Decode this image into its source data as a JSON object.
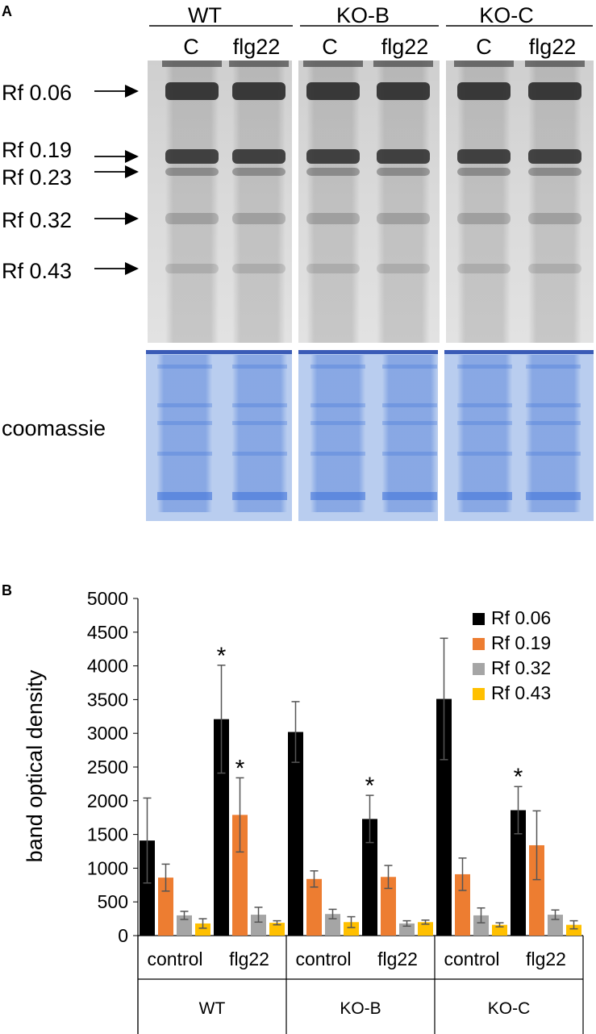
{
  "panelA": {
    "letter": "A",
    "genotypes": [
      "WT",
      "KO-B",
      "KO-C"
    ],
    "lane_labels": [
      "C",
      "flg22",
      "C",
      "flg22",
      "C",
      "flg22"
    ],
    "band_labels": [
      "Rf 0.06",
      "Rf 0.19",
      "Rf 0.23",
      "Rf 0.32",
      "Rf 0.43"
    ],
    "band_rf": [
      0.06,
      0.19,
      0.23,
      0.32,
      0.43
    ],
    "coomassie_label": "coomassie",
    "colors": {
      "gel_bg": "#d9d9d9",
      "gel_band": "#2a2a2a",
      "coomassie_bg": "#aac4ee",
      "coomassie_band": "#3a6fd8"
    }
  },
  "panelB": {
    "letter": "B",
    "significance_mark": "*",
    "chart_data": {
      "type": "bar",
      "ylabel": "band optical density",
      "ylim": [
        0,
        5000
      ],
      "yticks": [
        0,
        500,
        1000,
        1500,
        2000,
        2500,
        3000,
        3500,
        4000,
        4500,
        5000
      ],
      "categories": [
        "control",
        "flg22",
        "control",
        "flg22",
        "control",
        "flg22"
      ],
      "groups": [
        "WT",
        "KO-B",
        "KO-C"
      ],
      "legend_position": "top-right",
      "series": [
        {
          "name": "Rf 0.06",
          "color": "#000000",
          "values": [
            1410,
            3210,
            3020,
            1730,
            3510,
            1860
          ],
          "errors": [
            630,
            800,
            450,
            350,
            900,
            350
          ],
          "significant": [
            false,
            true,
            false,
            true,
            false,
            true
          ]
        },
        {
          "name": "Rf 0.19",
          "color": "#ed7d31",
          "values": [
            860,
            1790,
            840,
            870,
            910,
            1340
          ],
          "errors": [
            200,
            550,
            120,
            170,
            240,
            510
          ],
          "significant": [
            false,
            true,
            false,
            false,
            false,
            false
          ]
        },
        {
          "name": "Rf 0.32",
          "color": "#a5a5a5",
          "values": [
            300,
            310,
            320,
            180,
            300,
            310
          ],
          "errors": [
            60,
            110,
            70,
            40,
            110,
            70
          ],
          "significant": [
            false,
            false,
            false,
            false,
            false,
            false
          ]
        },
        {
          "name": "Rf 0.43",
          "color": "#ffc000",
          "values": [
            180,
            190,
            200,
            200,
            160,
            160
          ],
          "errors": [
            70,
            30,
            80,
            30,
            30,
            60
          ],
          "significant": [
            false,
            false,
            false,
            false,
            false,
            false
          ]
        }
      ]
    }
  }
}
